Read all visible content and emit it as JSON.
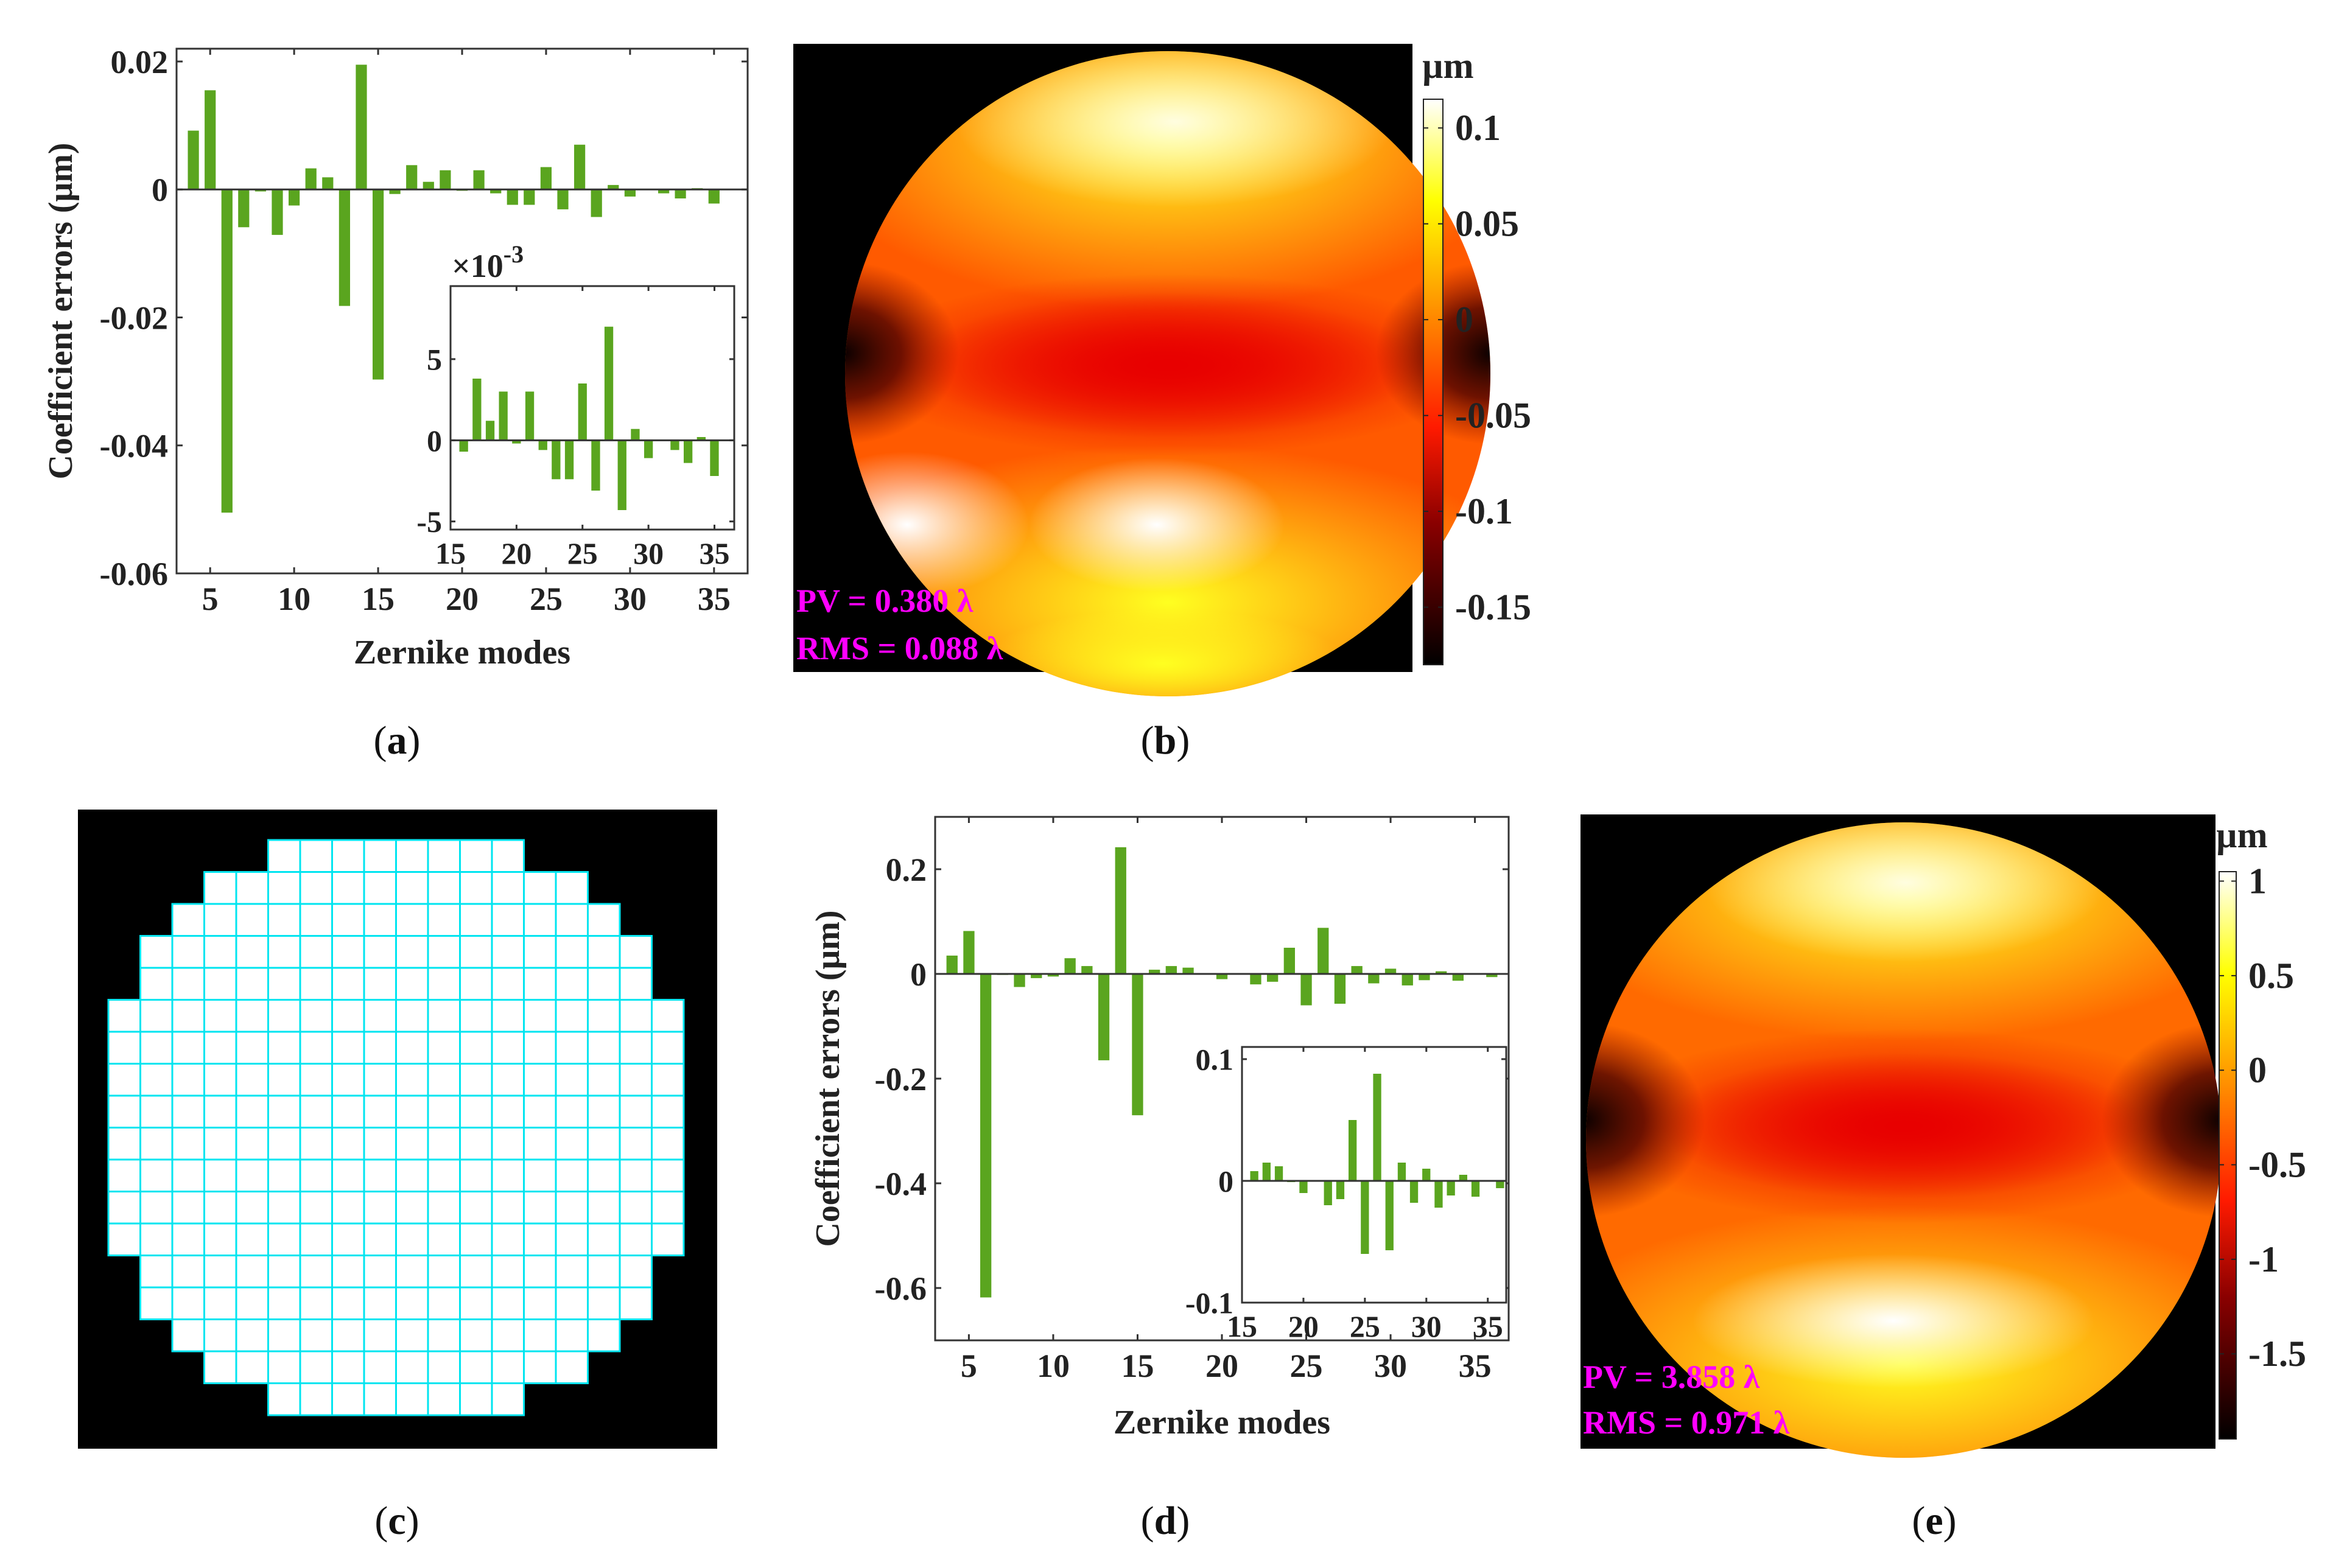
{
  "figure": {
    "captions": [
      "a",
      "b",
      "c",
      "d",
      "e"
    ],
    "bar_color": "#5aa51f",
    "annotation_color": "#ff00ff",
    "grid_color": "#00e5f0"
  },
  "panel_b": {
    "unit": "µm",
    "colorbar_ticks": [
      "0.1",
      "0.05",
      "0",
      "-0.05",
      "-0.1",
      "-0.15"
    ],
    "colorbar_values": [
      0.1,
      0.05,
      0,
      -0.05,
      -0.1,
      -0.15
    ],
    "colorbar_range": [
      -0.18,
      0.115
    ],
    "pv": "PV = 0.380 λ",
    "rms": "RMS = 0.088 λ"
  },
  "panel_e": {
    "unit": "µm",
    "colorbar_ticks": [
      "1",
      "0.5",
      "0",
      "-0.5",
      "-1",
      "-1.5"
    ],
    "colorbar_values": [
      1,
      0.5,
      0,
      -0.5,
      -1,
      -1.5
    ],
    "colorbar_range": [
      -1.95,
      1.05
    ],
    "pv": "PV = 3.858 λ",
    "rms": "RMS = 0.971 λ"
  },
  "chart_data": [
    {
      "id": "a",
      "type": "bar",
      "xlabel": "Zernike modes",
      "ylabel": "Coefficient errors (μm)",
      "xlim": [
        3,
        37
      ],
      "ylim": [
        -0.06,
        0.022
      ],
      "xticks": [
        5,
        10,
        15,
        20,
        25,
        30,
        35
      ],
      "yticks": [
        0.02,
        0,
        -0.02,
        -0.04,
        -0.06
      ],
      "ytick_labels": [
        "0.02",
        "0",
        "-0.02",
        "-0.04",
        "-0.06"
      ],
      "x": [
        4,
        5,
        6,
        7,
        8,
        9,
        10,
        11,
        12,
        13,
        14,
        15,
        16,
        17,
        18,
        19,
        20,
        21,
        22,
        23,
        24,
        25,
        26,
        27,
        28,
        29,
        30,
        31,
        32,
        33,
        34,
        35,
        36
      ],
      "values": [
        0.0092,
        0.0155,
        -0.0505,
        -0.0059,
        -0.0003,
        -0.0071,
        -0.0025,
        0.0033,
        0.0019,
        -0.0182,
        0.0195,
        -0.0297,
        -0.0007,
        0.0038,
        0.0012,
        0.003,
        -0.0002,
        0.003,
        -0.0006,
        -0.0024,
        -0.0024,
        0.0035,
        -0.0031,
        0.007,
        -0.0043,
        0.0007,
        -0.0011,
        0,
        -0.0006,
        -0.0014,
        0.0002,
        -0.0022,
        0
      ],
      "inset": {
        "xlim": [
          15,
          36.5
        ],
        "ylim": [
          -5.5,
          9.5
        ],
        "xticks": [
          15,
          20,
          25,
          30,
          35
        ],
        "yticks": [
          5,
          0,
          -5
        ],
        "ytick_labels": [
          "5",
          "0",
          "-5"
        ],
        "multiplier": "×10",
        "exponent": "-3",
        "x": [
          16,
          17,
          18,
          19,
          20,
          21,
          22,
          23,
          24,
          25,
          26,
          27,
          28,
          29,
          30,
          31,
          32,
          33,
          34,
          35,
          36
        ],
        "values": [
          -0.7,
          3.8,
          1.2,
          3.0,
          -0.2,
          3.0,
          -0.6,
          -2.4,
          -2.4,
          3.5,
          -3.1,
          7.0,
          -4.3,
          0.7,
          -1.1,
          0,
          -0.6,
          -1.4,
          0.2,
          -2.2,
          0
        ]
      }
    },
    {
      "id": "d",
      "type": "bar",
      "xlabel": "Zernike modes",
      "ylabel": "Coefficient errors (μm)",
      "xlim": [
        3,
        37
      ],
      "ylim": [
        -0.7,
        0.3
      ],
      "xticks": [
        5,
        10,
        15,
        20,
        25,
        30,
        35
      ],
      "yticks": [
        0.2,
        0,
        -0.2,
        -0.4,
        -0.6
      ],
      "ytick_labels": [
        "0.2",
        "0",
        "-0.2",
        "-0.4",
        "-0.6"
      ],
      "x": [
        4,
        5,
        6,
        7,
        8,
        9,
        10,
        11,
        12,
        13,
        14,
        15,
        16,
        17,
        18,
        19,
        20,
        21,
        22,
        23,
        24,
        25,
        26,
        27,
        28,
        29,
        30,
        31,
        32,
        33,
        34,
        35,
        36
      ],
      "values": [
        0.035,
        0.082,
        -0.618,
        -0.002,
        -0.025,
        -0.008,
        -0.005,
        0.03,
        0.015,
        -0.165,
        0.242,
        -0.27,
        0.008,
        0.015,
        0.012,
        -0.001,
        -0.01,
        0,
        -0.02,
        -0.015,
        0.05,
        -0.06,
        0.088,
        -0.057,
        0.015,
        -0.018,
        0.01,
        -0.022,
        -0.012,
        0.005,
        -0.013,
        0,
        -0.006
      ],
      "inset": {
        "xlim": [
          15,
          36.5
        ],
        "ylim": [
          -0.1,
          0.11
        ],
        "xticks": [
          15,
          20,
          25,
          30,
          35
        ],
        "yticks": [
          0.1,
          0,
          -0.1
        ],
        "ytick_labels": [
          "0.1",
          "0",
          "-0.1"
        ],
        "x": [
          16,
          17,
          18,
          19,
          20,
          21,
          22,
          23,
          24,
          25,
          26,
          27,
          28,
          29,
          30,
          31,
          32,
          33,
          34,
          35,
          36
        ],
        "values": [
          0.008,
          0.015,
          0.012,
          -0.001,
          -0.01,
          0,
          -0.02,
          -0.015,
          0.05,
          -0.06,
          0.088,
          -0.057,
          0.015,
          -0.018,
          0.01,
          -0.022,
          -0.012,
          0.005,
          -0.013,
          0,
          -0.006
        ]
      }
    }
  ]
}
